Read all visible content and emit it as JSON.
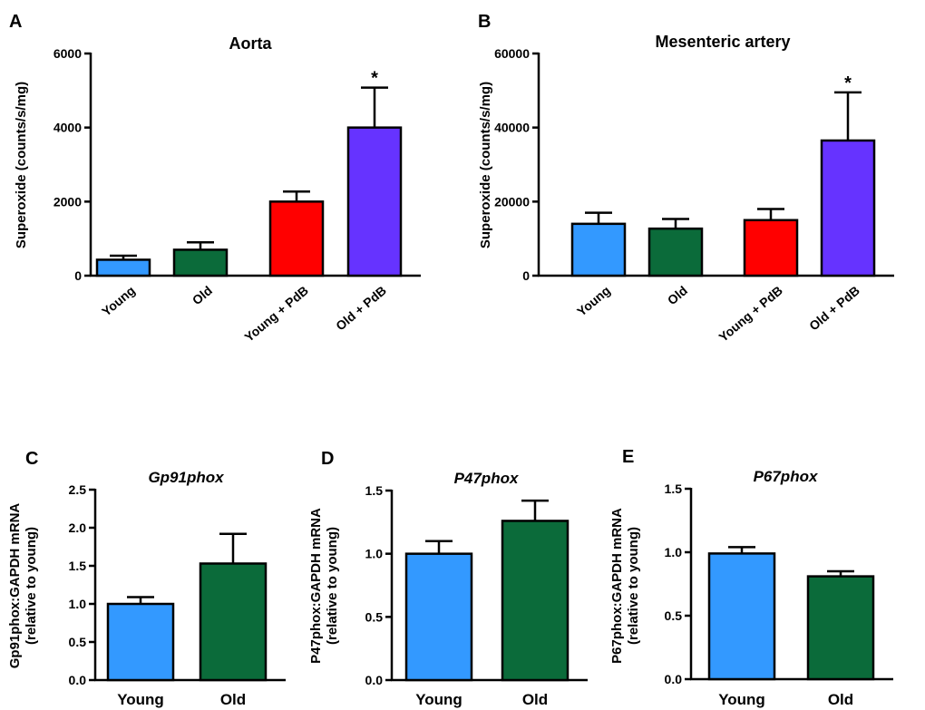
{
  "chart_data": [
    {
      "id": "A",
      "type": "bar",
      "panel_label": "A",
      "title": "Aorta",
      "title_italic": false,
      "ylabel": "Superoxide (counts/s/mg)",
      "ylabel_lines": [
        "Superoxide (counts/s/mg)"
      ],
      "ylim": [
        0,
        6000
      ],
      "yticks": [
        0,
        2000,
        4000,
        6000
      ],
      "ytick_labels": [
        "0",
        "2000",
        "4000",
        "6000"
      ],
      "xtick_rotation": "rotated",
      "categories": [
        "Young",
        "Old",
        "Young + PdB",
        "Old + PdB"
      ],
      "values": [
        430,
        700,
        2000,
        4000
      ],
      "errors": [
        110,
        200,
        270,
        1080
      ],
      "colors": [
        "#3399ff",
        "#0b6b3a",
        "#ff0000",
        "#6633ff"
      ],
      "annotations": [
        "",
        "",
        "",
        "*"
      ],
      "grid": false
    },
    {
      "id": "B",
      "type": "bar",
      "panel_label": "B",
      "title": "Mesenteric artery",
      "title_italic": false,
      "ylabel": "Superoxide (counts/s/mg)",
      "ylabel_lines": [
        "Superoxide (counts/s/mg)"
      ],
      "ylim": [
        0,
        60000
      ],
      "yticks": [
        0,
        20000,
        40000,
        60000
      ],
      "ytick_labels": [
        "0",
        "20000",
        "40000",
        "60000"
      ],
      "xtick_rotation": "rotated",
      "categories": [
        "Young",
        "Old",
        "Young + PdB",
        "Old + PdB"
      ],
      "values": [
        14000,
        12700,
        15000,
        36500
      ],
      "errors": [
        3000,
        2600,
        3000,
        13000
      ],
      "colors": [
        "#3399ff",
        "#0b6b3a",
        "#ff0000",
        "#6633ff"
      ],
      "annotations": [
        "",
        "",
        "",
        "*"
      ],
      "grid": false
    },
    {
      "id": "C",
      "type": "bar",
      "panel_label": "C",
      "title": "Gp91phox",
      "title_italic": true,
      "ylabel": "Gp91phox:GAPDH mRNA (relative to young)",
      "ylabel_lines": [
        "Gp91phox:GAPDH mRNA",
        "(relative to young)"
      ],
      "ylim": [
        0,
        2.5
      ],
      "yticks": [
        0,
        0.5,
        1.0,
        1.5,
        2.0,
        2.5
      ],
      "ytick_labels": [
        "0.0",
        "0.5",
        "1.0",
        "1.5",
        "2.0",
        "2.5"
      ],
      "xtick_rotation": "none",
      "categories": [
        "Young",
        "Old"
      ],
      "values": [
        1.0,
        1.53
      ],
      "errors": [
        0.09,
        0.39
      ],
      "colors": [
        "#3399ff",
        "#0b6b3a"
      ],
      "annotations": [
        "",
        ""
      ],
      "grid": false
    },
    {
      "id": "D",
      "type": "bar",
      "panel_label": "D",
      "title": "P47phox",
      "title_italic": true,
      "ylabel": "P47phox:GAPDH mRNA (relative to young)",
      "ylabel_lines": [
        "P47phox:GAPDH mRNA",
        "(relative to young)"
      ],
      "ylim": [
        0,
        1.5
      ],
      "yticks": [
        0,
        0.5,
        1.0,
        1.5
      ],
      "ytick_labels": [
        "0.0",
        "0.5",
        "1.0",
        "1.5"
      ],
      "xtick_rotation": "none",
      "categories": [
        "Young",
        "Old"
      ],
      "values": [
        1.0,
        1.26
      ],
      "errors": [
        0.1,
        0.16
      ],
      "colors": [
        "#3399ff",
        "#0b6b3a"
      ],
      "annotations": [
        "",
        ""
      ],
      "grid": false
    },
    {
      "id": "E",
      "type": "bar",
      "panel_label": "E",
      "title": "P67phox",
      "title_italic": true,
      "ylabel": "P67phox:GAPDH mRNA (relative to young)",
      "ylabel_lines": [
        "P67phox:GAPDH mRNA",
        "(relative to young)"
      ],
      "ylim": [
        0,
        1.5
      ],
      "yticks": [
        0,
        0.5,
        1.0,
        1.5
      ],
      "ytick_labels": [
        "0.0",
        "0.5",
        "1.0",
        "1.5"
      ],
      "xtick_rotation": "none",
      "categories": [
        "Young",
        "Old"
      ],
      "values": [
        0.99,
        0.81
      ],
      "errors": [
        0.05,
        0.04
      ],
      "colors": [
        "#3399ff",
        "#0b6b3a"
      ],
      "annotations": [
        "",
        ""
      ],
      "grid": false
    }
  ]
}
